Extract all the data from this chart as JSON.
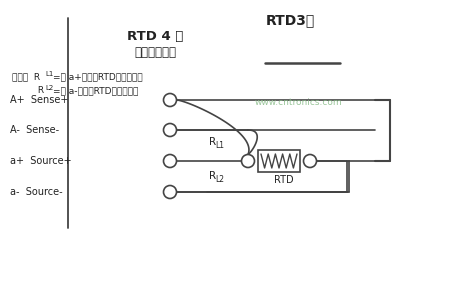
{
  "title_top": "RTD3线",
  "title_sub1": "RTD 4 线",
  "title_sub2": "（精度最高）",
  "labels": [
    "A+  Sense+",
    "A-  Sense-",
    "a+  Source+",
    "a-  Source-"
  ],
  "note1_pre": "注意：  R",
  "note1_sub": "L1",
  "note1_post": "=从 a+端子到RTD的导线电阻",
  "note2_pre": "         R",
  "note2_sub": "L2",
  "note2_post": "=从 a-端子到RTD的导线电阻",
  "rl1_main": "R",
  "rl1_sub": "L1",
  "rl2_main": "R",
  "rl2_sub": "L2",
  "rtd_label": "RTD",
  "bg_color": "#ffffff",
  "line_color": "#444444",
  "text_color": "#222222",
  "wm_color": "#88bb88"
}
